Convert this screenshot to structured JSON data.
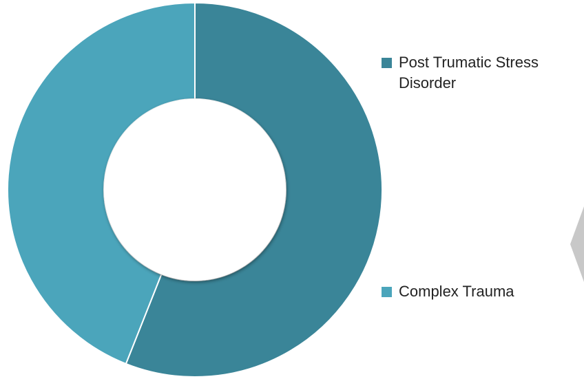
{
  "chart_data": {
    "type": "pie",
    "variant": "donut",
    "title": "",
    "series": [
      {
        "name": "Post Trumatic Stress Disorder",
        "value": 56,
        "color": "#3A8598"
      },
      {
        "name": "Complex Trauma",
        "value": 44,
        "color": "#4BA5BB"
      }
    ],
    "legend_position": "right",
    "grid": false
  },
  "legend": {
    "items": [
      {
        "label": "Post Trumatic Stress Disorder",
        "color": "#3A8598"
      },
      {
        "label": "Complex Trauma",
        "color": "#4BA5BB"
      }
    ]
  },
  "colors": {
    "background": "#FFFFFF",
    "separator": "#FFFFFF",
    "decoration": "#C8C8C8"
  }
}
